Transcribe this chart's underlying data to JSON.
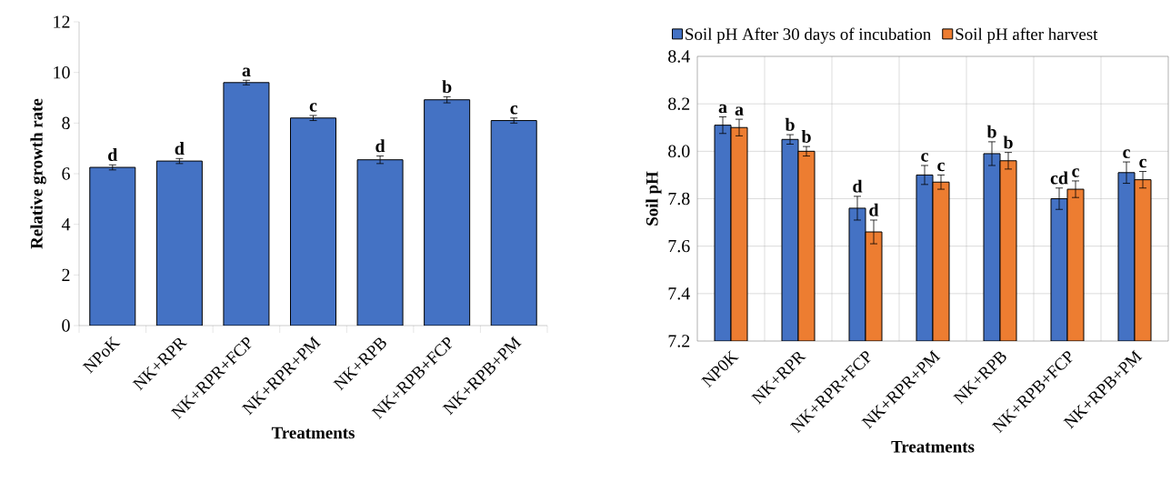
{
  "chart_data": [
    {
      "type": "bar",
      "xlabel": "Treatments",
      "ylabel": "Relative growth rate",
      "categories": [
        "NPoK",
        "NK+RPR",
        "NK+RPR+FCP",
        "NK+RPR+PM",
        "NK+RPB",
        "NK+RPB+FCP",
        "NK+RPB+PM"
      ],
      "values": [
        6.25,
        6.5,
        9.6,
        8.2,
        6.55,
        8.92,
        8.1
      ],
      "errors": [
        0.1,
        0.1,
        0.09,
        0.1,
        0.15,
        0.12,
        0.1
      ],
      "value_labels": [
        "d",
        "d",
        "a",
        "c",
        "d",
        "b",
        "c"
      ],
      "color": "#4472c4",
      "ylim": [
        0,
        12
      ],
      "yticks": [
        0,
        2,
        4,
        6,
        8,
        10,
        12
      ],
      "grid": false
    },
    {
      "type": "bar",
      "xlabel": "Treatments",
      "ylabel": "Soil pH",
      "categories": [
        "NP0K",
        "NK+RPR",
        "NK+RPR+FCP",
        "NK+RPR+PM",
        "NK+RPB",
        "NK+RPB+FCP",
        "NK+RPB+PM"
      ],
      "series": [
        {
          "name": "Soil pH After 30 days of incubation",
          "color": "#4472c4",
          "values": [
            8.11,
            8.05,
            7.76,
            7.9,
            7.99,
            7.8,
            7.91
          ],
          "errors": [
            0.035,
            0.02,
            0.05,
            0.04,
            0.05,
            0.045,
            0.045
          ],
          "value_labels": [
            "a",
            "b",
            "d",
            "c",
            "b",
            "cd",
            "c"
          ]
        },
        {
          "name": "Soil pH after harvest",
          "color": "#ed7d31",
          "values": [
            8.1,
            8.0,
            7.66,
            7.87,
            7.96,
            7.84,
            7.88
          ],
          "errors": [
            0.035,
            0.02,
            0.05,
            0.03,
            0.035,
            0.035,
            0.035
          ],
          "value_labels": [
            "a",
            "b",
            "d",
            "c",
            "b",
            "c",
            "c"
          ]
        }
      ],
      "ylim": [
        7.2,
        8.4
      ],
      "yticks": [
        7.2,
        7.4,
        7.6,
        7.8,
        {
          "value": 8.0,
          "label": "8.0"
        },
        8.2,
        8.4
      ],
      "grid": true,
      "legend": "top"
    }
  ]
}
